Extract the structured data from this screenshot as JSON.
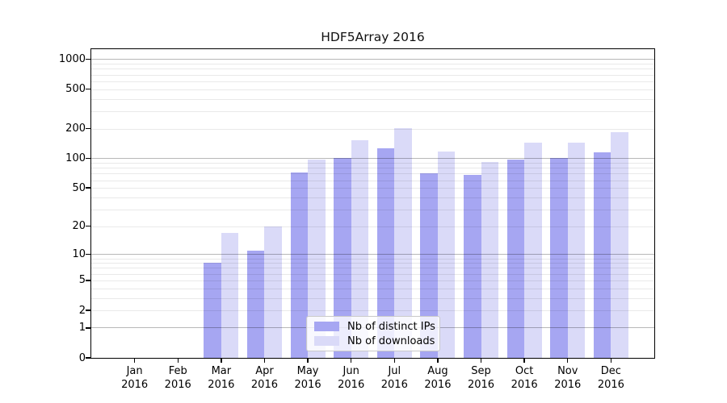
{
  "title": "HDF5Array 2016",
  "chart_data": {
    "type": "bar",
    "title": "HDF5Array 2016",
    "categories": [
      "Jan 2016",
      "Feb 2016",
      "Mar 2016",
      "Apr 2016",
      "May 2016",
      "Jun 2016",
      "Jul 2016",
      "Aug 2016",
      "Sep 2016",
      "Oct 2016",
      "Nov 2016",
      "Dec 2016"
    ],
    "x_tick_months": [
      "Jan",
      "Feb",
      "Mar",
      "Apr",
      "May",
      "Jun",
      "Jul",
      "Aug",
      "Sep",
      "Oct",
      "Nov",
      "Dec"
    ],
    "x_tick_year": "2016",
    "series": [
      {
        "name": "Nb of distinct IPs",
        "color": "#a6a6f2",
        "values": [
          0,
          0,
          8,
          11,
          72,
          100,
          127,
          70,
          68,
          98,
          101,
          115
        ]
      },
      {
        "name": "Nb of downloads",
        "color": "#dadaf8",
        "values": [
          0,
          0,
          17,
          20,
          97,
          152,
          202,
          117,
          92,
          143,
          145,
          183
        ]
      }
    ],
    "xlabel": "",
    "ylabel": "",
    "yscale": "log10(1+v)",
    "ylim": [
      0,
      1260
    ],
    "ytick_labels": [
      0,
      1,
      2,
      5,
      10,
      20,
      50,
      100,
      200,
      500,
      1000
    ],
    "major_gridlines": [
      1,
      10,
      100,
      1000
    ],
    "minor_gridlines": [
      2,
      3,
      4,
      5,
      6,
      7,
      8,
      9,
      20,
      30,
      40,
      50,
      60,
      70,
      80,
      90,
      200,
      300,
      400,
      500,
      600,
      700,
      800,
      900
    ],
    "grid": true,
    "legend_position": "inside-bottom-center"
  },
  "colors": {
    "background": "#ffffff",
    "axis": "#000000",
    "major_grid": "rgba(0,0,0,0.28)",
    "minor_grid": "rgba(0,0,0,0.085)",
    "ips_bar": "#a6a6f2",
    "downloads_bar": "#dadaf8",
    "legend_border": "#c9c9c9"
  }
}
